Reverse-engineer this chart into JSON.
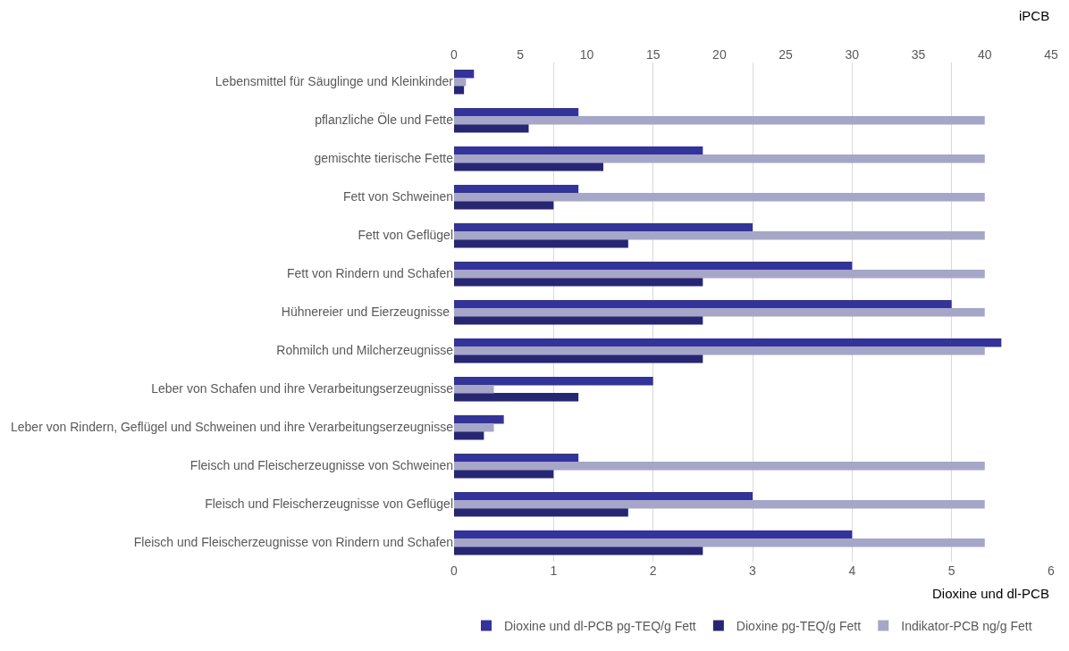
{
  "chart_data": {
    "type": "bar",
    "orientation": "horizontal",
    "categories": [
      "Lebensmittel für Säuglinge und Kleinkinder",
      "pflanzliche Öle und Fette",
      "gemischte tierische Fette",
      "Fett von Schweinen",
      "Fett von Geflügel",
      "Fett von Rindern und Schafen",
      "Hühnereier und Eierzeugnisse ",
      "Rohmilch und Milcherzeugnisse",
      "Leber von Schafen und ihre Verarbeitungserzeugnisse",
      "Leber von Rindern, Geflügel und Schweinen und ihre Verarbeitungserzeugnisse",
      "Fleisch und Fleischerzeugnisse von Schweinen",
      "Fleisch und Fleischerzeugnisse von Geflügel",
      "Fleisch und Fleischerzeugnisse von Rindern und Schafen"
    ],
    "series": [
      {
        "name": "Dioxine und dl-PCB pg-TEQ/g Fett",
        "color": "#333399",
        "values": [
          0.2,
          1.25,
          2.5,
          1.25,
          3.0,
          4.0,
          5.0,
          5.5,
          2.0,
          0.5,
          1.25,
          3.0,
          4.0
        ]
      },
      {
        "name": "Dioxine pg-TEQ/g Fett",
        "color": "#262673",
        "values": [
          0.1,
          0.75,
          1.5,
          1.0,
          1.75,
          2.5,
          2.5,
          2.5,
          1.25,
          0.3,
          1.0,
          1.75,
          2.5
        ]
      },
      {
        "name": "Indikator-PCB ng/g Fett",
        "color": "#a6a6c8",
        "axis": "x2",
        "values": [
          0.9,
          40,
          40,
          40,
          40,
          40,
          40,
          40,
          3.0,
          3.0,
          40,
          40,
          40
        ]
      }
    ],
    "xlabel": "Dioxine und dl-PCB",
    "xlim": [
      0,
      6
    ],
    "xticks": [
      0,
      1,
      2,
      3,
      4,
      5,
      6
    ],
    "x2label": "iPCB",
    "x2lim": [
      0,
      45
    ],
    "x2ticks": [
      0,
      5,
      10,
      15,
      20,
      25,
      30,
      35,
      40,
      45
    ],
    "grid": "x",
    "legend": "bottom"
  }
}
